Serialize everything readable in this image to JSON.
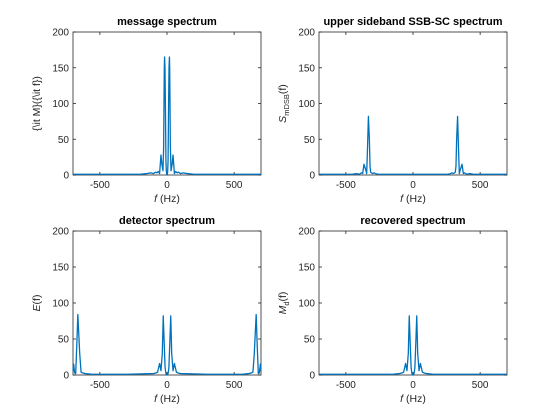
{
  "figure": {
    "line_color": "#0072BD",
    "frame_color": "#262626"
  },
  "chart_data": [
    {
      "type": "line",
      "title": "message spectrum",
      "xlabel": "(Hz)",
      "xlabel_var": "f",
      "ylabel": "{\\it M}({\\it f})",
      "ylabel_parts": null,
      "xlim": [
        -700,
        700
      ],
      "ylim": [
        0,
        200
      ],
      "xticks": [
        -500,
        0,
        500
      ],
      "yticks": [
        0,
        50,
        100,
        150,
        200
      ],
      "xtick_labels": [
        "-500",
        "0",
        "500"
      ],
      "ytick_labels": [
        "0",
        "50",
        "100",
        "150",
        "200"
      ],
      "series": [
        {
          "x": [
            -700,
            -300,
            -200,
            -150,
            -120,
            -100,
            -85,
            -75,
            -65,
            -55,
            -45,
            -38,
            -30,
            -25,
            -22,
            -20,
            -18,
            -15,
            -12,
            -10,
            -8,
            -5,
            -2,
            0,
            2,
            5,
            8,
            10,
            12,
            15,
            18,
            20,
            22,
            25,
            30,
            38,
            45,
            55,
            65,
            75,
            85,
            100,
            120,
            150,
            200,
            300,
            700
          ],
          "y": [
            1,
            1,
            1,
            2,
            3,
            2,
            4,
            3,
            5,
            2,
            28,
            15,
            6,
            40,
            110,
            150,
            165,
            150,
            100,
            60,
            20,
            5,
            1,
            0,
            1,
            5,
            20,
            60,
            100,
            150,
            165,
            150,
            110,
            40,
            6,
            15,
            28,
            2,
            5,
            3,
            4,
            2,
            3,
            2,
            1,
            1,
            1
          ]
        }
      ]
    },
    {
      "type": "line",
      "title": "upper sideband SSB-SC spectrum",
      "xlabel": "(Hz)",
      "xlabel_var": "f",
      "ylabel": "",
      "ylabel_parts": {
        "main": "S",
        "sub": "mDSB",
        "arg": "(f)"
      },
      "xlim": [
        -700,
        700
      ],
      "ylim": [
        0,
        200
      ],
      "xticks": [
        -500,
        0,
        500
      ],
      "yticks": [
        0,
        50,
        100,
        150,
        200
      ],
      "xtick_labels": [
        "-500",
        "0",
        "500"
      ],
      "ytick_labels": [
        "0",
        "50",
        "100",
        "150",
        "200"
      ],
      "series": [
        {
          "x": [
            -700,
            -450,
            -420,
            -400,
            -385,
            -375,
            -365,
            -350,
            -345,
            -340,
            -332,
            -325,
            -320,
            -315,
            -310,
            -300,
            -290,
            -280,
            -260,
            -200,
            200,
            260,
            280,
            290,
            300,
            310,
            315,
            320,
            325,
            332,
            340,
            345,
            350,
            365,
            375,
            385,
            400,
            420,
            450,
            700
          ],
          "y": [
            1,
            1,
            2,
            1,
            3,
            2,
            15,
            6,
            2,
            30,
            82,
            50,
            12,
            4,
            3,
            2,
            3,
            2,
            1,
            1,
            1,
            1,
            2,
            3,
            2,
            3,
            4,
            12,
            50,
            82,
            30,
            2,
            6,
            15,
            2,
            3,
            1,
            2,
            1,
            1
          ]
        }
      ]
    },
    {
      "type": "line",
      "title": "detector spectrum",
      "xlabel": "(Hz)",
      "xlabel_var": "f",
      "ylabel": "",
      "ylabel_parts": {
        "main": "E",
        "sub": "",
        "arg": "(f)"
      },
      "xlim": [
        -700,
        700
      ],
      "ylim": [
        0,
        200
      ],
      "xticks": [
        -500,
        0,
        500
      ],
      "yticks": [
        0,
        50,
        100,
        150,
        200
      ],
      "xtick_labels": [
        "-500",
        "0",
        "500"
      ],
      "ytick_labels": [
        "0",
        "50",
        "100",
        "150",
        "200"
      ],
      "series": [
        {
          "x": [
            -700,
            -695,
            -688,
            -680,
            -672,
            -664,
            -650,
            -640,
            -630,
            -610,
            -560,
            -500,
            -300,
            -100,
            -80,
            -70,
            -55,
            -45,
            -35,
            -28,
            -20,
            -14,
            -8,
            -2,
            0,
            2,
            8,
            14,
            20,
            28,
            35,
            45,
            55,
            70,
            80,
            100,
            300,
            500,
            560,
            610,
            630,
            640,
            650,
            664,
            672,
            680,
            688,
            695,
            700
          ],
          "y": [
            6,
            15,
            3,
            2,
            40,
            84,
            30,
            4,
            3,
            2,
            1,
            1,
            1,
            2,
            3,
            4,
            16,
            6,
            30,
            82,
            40,
            10,
            2,
            0,
            0,
            0,
            2,
            10,
            40,
            82,
            30,
            6,
            16,
            4,
            3,
            2,
            1,
            1,
            1,
            2,
            3,
            4,
            30,
            84,
            40,
            2,
            3,
            15,
            6
          ]
        }
      ]
    },
    {
      "type": "line",
      "title": "recovered spectrum",
      "xlabel": "(Hz)",
      "xlabel_var": "f",
      "ylabel": "",
      "ylabel_parts": {
        "main": "M",
        "sub": "d",
        "arg": "(f)"
      },
      "xlim": [
        -700,
        700
      ],
      "ylim": [
        0,
        200
      ],
      "xticks": [
        -500,
        0,
        500
      ],
      "yticks": [
        0,
        50,
        100,
        150,
        200
      ],
      "xtick_labels": [
        "-500",
        "0",
        "500"
      ],
      "ytick_labels": [
        "0",
        "50",
        "100",
        "150",
        "200"
      ],
      "series": [
        {
          "x": [
            -700,
            -300,
            -150,
            -100,
            -80,
            -70,
            -55,
            -45,
            -35,
            -28,
            -20,
            -14,
            -8,
            -2,
            0,
            2,
            8,
            14,
            20,
            28,
            35,
            45,
            55,
            70,
            80,
            100,
            150,
            300,
            700
          ],
          "y": [
            1,
            1,
            1,
            2,
            3,
            4,
            16,
            6,
            30,
            82,
            40,
            10,
            2,
            0,
            0,
            0,
            2,
            10,
            40,
            82,
            30,
            6,
            16,
            4,
            3,
            2,
            1,
            1,
            1
          ]
        }
      ]
    }
  ]
}
